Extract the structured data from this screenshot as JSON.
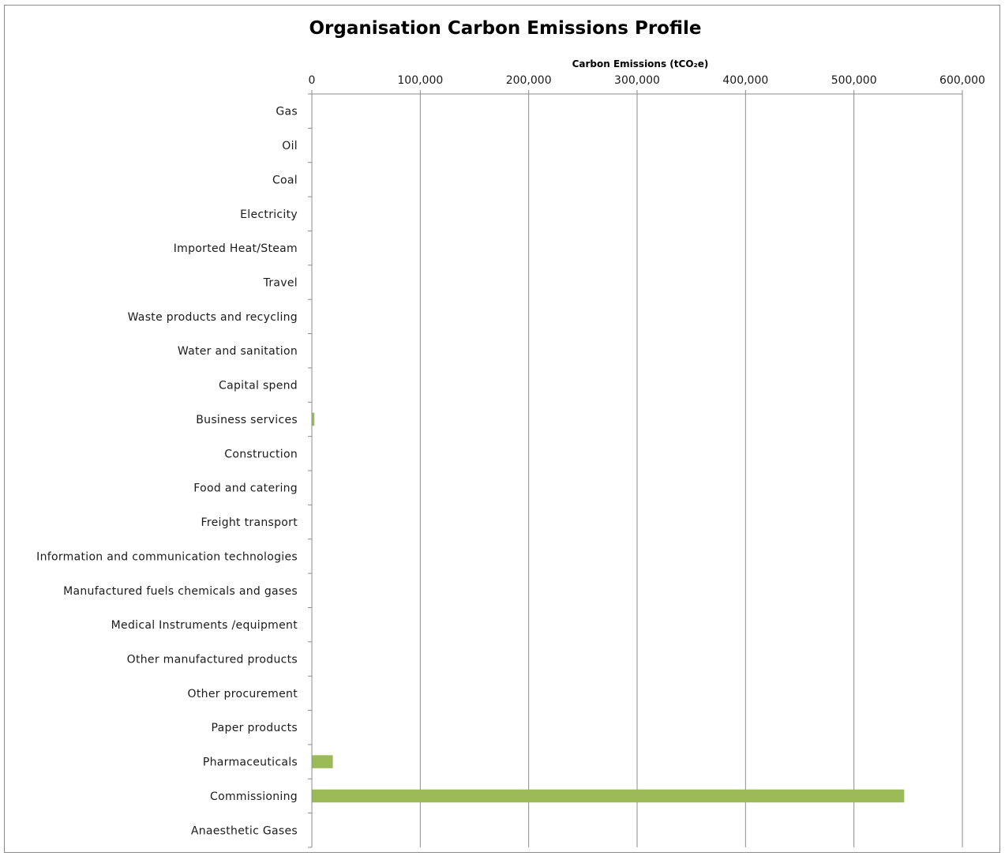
{
  "chart_data": {
    "type": "bar",
    "orientation": "horizontal",
    "title": "Organisation Carbon Emissions Profile",
    "xlabel": "Carbon Emissions (tCO₂e)",
    "ylabel": "",
    "xlim": [
      0,
      600000
    ],
    "x_ticks": [
      0,
      100000,
      200000,
      300000,
      400000,
      500000,
      600000
    ],
    "x_tick_labels": [
      "0",
      "100,000",
      "200,000",
      "300,000",
      "400,000",
      "500,000",
      "600,000"
    ],
    "x_axis_position": "top",
    "grid": true,
    "legend": "none",
    "bar_color": "#9bbb59",
    "categories": [
      "Gas",
      "Oil",
      "Coal",
      "Electricity",
      "Imported Heat/Steam",
      "Travel",
      "Waste products and recycling",
      "Water and sanitation",
      "Capital spend",
      "Business services",
      "Construction",
      "Food and catering",
      "Freight transport",
      "Information and communication technologies",
      "Manufactured fuels chemicals and gases",
      "Medical Instruments /equipment",
      "Other manufactured products",
      "Other procurement",
      "Paper products",
      "Pharmaceuticals",
      "Commissioning",
      "Anaesthetic Gases"
    ],
    "values": [
      0,
      0,
      0,
      0,
      0,
      0,
      0,
      0,
      0,
      2000,
      0,
      0,
      0,
      0,
      0,
      0,
      0,
      0,
      0,
      19000,
      546000,
      0
    ]
  }
}
